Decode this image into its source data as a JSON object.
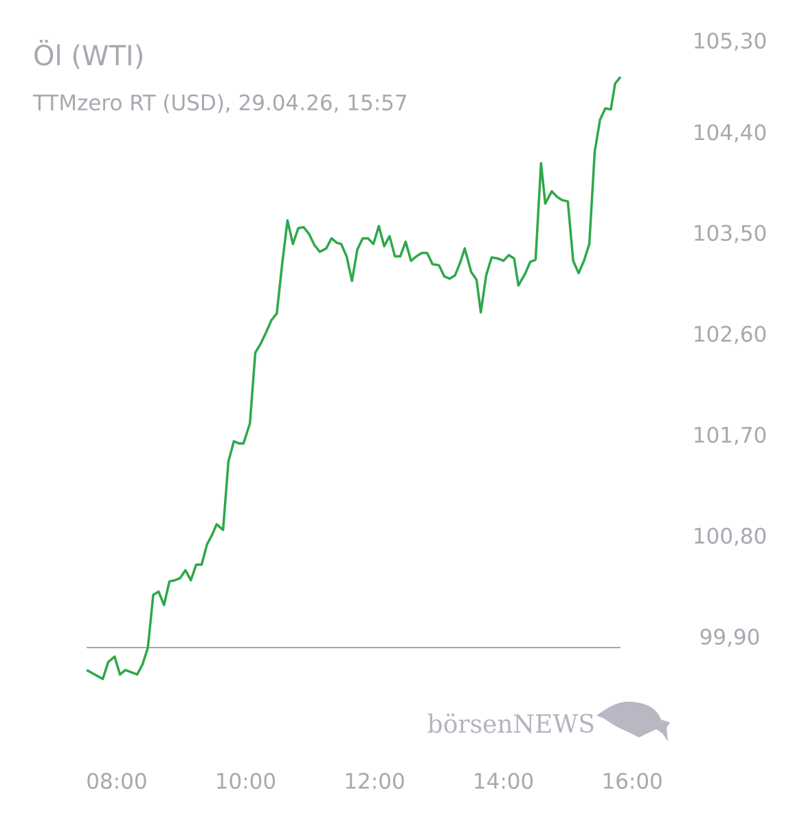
{
  "chart_data": {
    "type": "line",
    "title": "Öl (WTI)",
    "subtitle": "TTMzero RT (USD), 29.04.26, 15:57",
    "watermark": "börsenNEWS",
    "x": [
      "07:32",
      "07:47",
      "07:52",
      "07:58",
      "08:03",
      "08:08",
      "08:19",
      "08:24",
      "08:29",
      "08:34",
      "08:39",
      "08:44",
      "08:49",
      "08:54",
      "08:59",
      "09:04",
      "09:09",
      "09:14",
      "09:19",
      "09:24",
      "09:29",
      "09:33",
      "09:39",
      "09:44",
      "09:49",
      "09:54",
      "09:58",
      "10:04",
      "10:09",
      "10:14",
      "10:19",
      "10:24",
      "10:29",
      "10:34",
      "10:39",
      "10:44",
      "10:49",
      "10:54",
      "10:59",
      "11:04",
      "11:09",
      "11:15",
      "11:20",
      "11:25",
      "11:29",
      "11:34",
      "11:39",
      "11:44",
      "11:49",
      "11:54",
      "11:59",
      "12:04",
      "12:09",
      "12:14",
      "12:19",
      "12:24",
      "12:29",
      "12:34",
      "12:39",
      "12:44",
      "12:49",
      "12:54",
      "13:00",
      "13:05",
      "13:10",
      "13:15",
      "13:20",
      "13:24",
      "13:30",
      "13:35",
      "13:39",
      "13:44",
      "13:49",
      "13:55",
      "14:00",
      "14:05",
      "14:10",
      "14:14",
      "14:20",
      "14:25",
      "14:30",
      "14:35",
      "14:39",
      "14:45",
      "14:50",
      "14:55",
      "15:00",
      "15:05",
      "15:10",
      "15:15",
      "15:20",
      "15:25",
      "15:30",
      "15:35",
      "15:40",
      "15:44",
      "15:49"
    ],
    "series": [
      {
        "name": "Öl (WTI)",
        "color": "#2ea84a",
        "values": [
          99.62,
          99.54,
          99.69,
          99.74,
          99.58,
          99.62,
          99.58,
          99.67,
          99.82,
          100.29,
          100.32,
          100.2,
          100.41,
          100.42,
          100.44,
          100.51,
          100.42,
          100.56,
          100.56,
          100.74,
          100.83,
          100.92,
          100.87,
          101.48,
          101.66,
          101.64,
          101.64,
          101.82,
          102.45,
          102.53,
          102.63,
          102.74,
          102.8,
          103.24,
          103.63,
          103.42,
          103.56,
          103.57,
          103.51,
          103.41,
          103.35,
          103.38,
          103.47,
          103.43,
          103.42,
          103.31,
          103.09,
          103.37,
          103.47,
          103.47,
          103.42,
          103.58,
          103.4,
          103.49,
          103.31,
          103.31,
          103.44,
          103.27,
          103.31,
          103.34,
          103.34,
          103.24,
          103.23,
          103.13,
          103.11,
          103.14,
          103.26,
          103.38,
          103.17,
          103.1,
          102.81,
          103.14,
          103.3,
          103.29,
          103.27,
          103.32,
          103.29,
          103.05,
          103.15,
          103.26,
          103.28,
          104.14,
          103.78,
          103.89,
          103.84,
          103.81,
          103.8,
          103.27,
          103.16,
          103.27,
          103.42,
          104.24,
          104.53,
          104.63,
          104.62,
          104.85,
          104.91
        ]
      }
    ],
    "previous_close": 99.82,
    "xlim": [
      "07:30",
      "16:30"
    ],
    "xticks": [
      "08:00",
      "10:00",
      "12:00",
      "14:00",
      "16:00"
    ],
    "ylim": [
      99.0,
      105.4
    ],
    "yticks": [
      {
        "value": 99.9,
        "label": "99,90"
      },
      {
        "value": 100.8,
        "label": "100,80"
      },
      {
        "value": 101.7,
        "label": "101,70"
      },
      {
        "value": 102.6,
        "label": "102,60"
      },
      {
        "value": 103.5,
        "label": "103,50"
      },
      {
        "value": 104.4,
        "label": "104,40"
      },
      {
        "value": 105.3,
        "label": "105,30"
      }
    ],
    "grid": false
  }
}
